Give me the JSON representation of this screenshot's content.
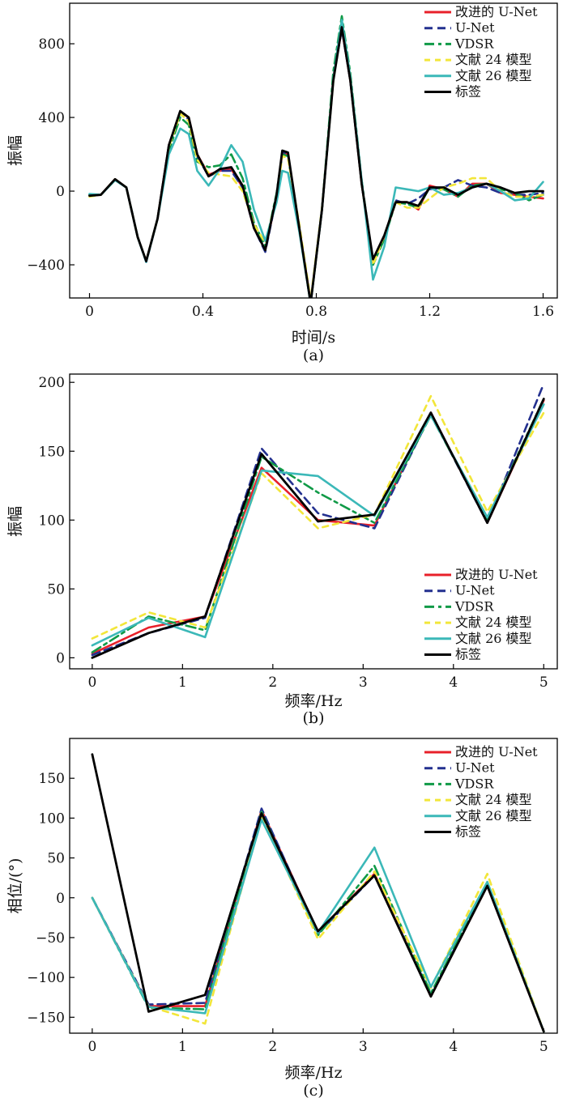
{
  "chart_data": [
    {
      "id": "a",
      "type": "line",
      "panel_label": "(a)",
      "xlabel": "时间/s",
      "ylabel": "振幅",
      "xlim": [
        -0.07,
        1.65
      ],
      "ylim": [
        -580,
        1020
      ],
      "xticks": [
        0,
        0.4,
        0.8,
        1.2,
        1.6
      ],
      "xtick_labels": [
        "0",
        "0.4",
        "0.8",
        "1.2",
        "1.6"
      ],
      "yticks": [
        -400,
        0,
        400,
        800
      ],
      "ytick_labels": [
        "−400",
        "0",
        "400",
        "800"
      ],
      "legend_position": "top-right",
      "series": [
        {
          "name": "改进的 U-Net",
          "color": "#e8202a",
          "dash": "solid",
          "x": [
            0,
            0.04,
            0.09,
            0.13,
            0.17,
            0.2,
            0.24,
            0.28,
            0.32,
            0.35,
            0.38,
            0.42,
            0.46,
            0.5,
            0.54,
            0.58,
            0.62,
            0.66,
            0.68,
            0.7,
            0.74,
            0.78,
            0.82,
            0.86,
            0.89,
            0.92,
            0.96,
            1.0,
            1.04,
            1.08,
            1.12,
            1.16,
            1.2,
            1.25,
            1.3,
            1.35,
            1.4,
            1.45,
            1.5,
            1.55,
            1.6
          ],
          "y": [
            -25,
            -20,
            65,
            20,
            -250,
            -380,
            -150,
            250,
            430,
            400,
            200,
            90,
            110,
            120,
            20,
            -200,
            -320,
            -30,
            210,
            200,
            -200,
            -600,
            -100,
            620,
            880,
            600,
            40,
            -390,
            -250,
            -60,
            -60,
            -100,
            30,
            10,
            -30,
            40,
            40,
            -10,
            -20,
            -30,
            -40
          ]
        },
        {
          "name": "U-Net",
          "color": "#23308f",
          "dash": "10,6",
          "x": [
            0,
            0.04,
            0.09,
            0.13,
            0.17,
            0.2,
            0.24,
            0.28,
            0.32,
            0.35,
            0.38,
            0.42,
            0.46,
            0.5,
            0.54,
            0.58,
            0.62,
            0.66,
            0.68,
            0.7,
            0.74,
            0.78,
            0.82,
            0.86,
            0.89,
            0.92,
            0.96,
            1.0,
            1.04,
            1.08,
            1.12,
            1.16,
            1.2,
            1.25,
            1.3,
            1.35,
            1.4,
            1.45,
            1.5,
            1.55,
            1.6
          ],
          "y": [
            -20,
            -20,
            60,
            20,
            -250,
            -385,
            -150,
            250,
            425,
            390,
            190,
            80,
            110,
            110,
            20,
            -200,
            -330,
            -30,
            215,
            200,
            -210,
            -610,
            -100,
            610,
            880,
            600,
            40,
            -380,
            -250,
            -50,
            -70,
            -40,
            10,
            20,
            60,
            30,
            20,
            -10,
            -20,
            -20,
            -10
          ]
        },
        {
          "name": "VDSR",
          "color": "#109a47",
          "dash": "12,5,4,5",
          "x": [
            0,
            0.04,
            0.09,
            0.13,
            0.17,
            0.2,
            0.24,
            0.28,
            0.32,
            0.35,
            0.38,
            0.42,
            0.46,
            0.5,
            0.54,
            0.58,
            0.62,
            0.66,
            0.68,
            0.7,
            0.74,
            0.78,
            0.82,
            0.86,
            0.89,
            0.92,
            0.96,
            1.0,
            1.04,
            1.08,
            1.12,
            1.16,
            1.2,
            1.25,
            1.3,
            1.35,
            1.4,
            1.45,
            1.5,
            1.55,
            1.6
          ],
          "y": [
            -20,
            -20,
            60,
            20,
            -250,
            -380,
            -150,
            220,
            400,
            360,
            160,
            130,
            140,
            200,
            70,
            -170,
            -300,
            -10,
            200,
            190,
            -200,
            -610,
            -100,
            650,
            950,
            640,
            60,
            -400,
            -260,
            -60,
            -70,
            -90,
            20,
            10,
            -30,
            30,
            40,
            10,
            -10,
            -50,
            -20
          ]
        },
        {
          "name": "文献 24 模型",
          "color": "#f2e63a",
          "dash": "7,6",
          "x": [
            0,
            0.04,
            0.09,
            0.13,
            0.17,
            0.2,
            0.24,
            0.28,
            0.32,
            0.35,
            0.38,
            0.42,
            0.46,
            0.5,
            0.54,
            0.58,
            0.62,
            0.66,
            0.68,
            0.7,
            0.74,
            0.78,
            0.82,
            0.86,
            0.89,
            0.92,
            0.96,
            1.0,
            1.04,
            1.08,
            1.12,
            1.16,
            1.2,
            1.25,
            1.3,
            1.35,
            1.4,
            1.45,
            1.5,
            1.55,
            1.6
          ],
          "y": [
            -30,
            -20,
            65,
            20,
            -250,
            -380,
            -150,
            240,
            420,
            380,
            170,
            100,
            90,
            80,
            0,
            -180,
            -280,
            -40,
            190,
            180,
            -180,
            -590,
            -90,
            600,
            900,
            620,
            40,
            -400,
            -240,
            -60,
            -90,
            -90,
            -40,
            20,
            40,
            70,
            70,
            0,
            -30,
            -30,
            -20
          ]
        },
        {
          "name": "文献 26 模型",
          "color": "#3bb8b8",
          "dash": "solid",
          "x": [
            0,
            0.04,
            0.09,
            0.13,
            0.17,
            0.2,
            0.24,
            0.28,
            0.32,
            0.35,
            0.38,
            0.42,
            0.46,
            0.5,
            0.54,
            0.58,
            0.62,
            0.66,
            0.68,
            0.7,
            0.74,
            0.78,
            0.82,
            0.86,
            0.89,
            0.92,
            0.96,
            1.0,
            1.04,
            1.08,
            1.12,
            1.16,
            1.2,
            1.25,
            1.3,
            1.35,
            1.4,
            1.45,
            1.5,
            1.55,
            1.6
          ],
          "y": [
            -15,
            -20,
            60,
            20,
            -250,
            -385,
            -150,
            200,
            340,
            310,
            110,
            30,
            120,
            250,
            160,
            -100,
            -270,
            -60,
            110,
            100,
            -220,
            -610,
            -100,
            610,
            930,
            620,
            60,
            -480,
            -300,
            20,
            10,
            0,
            20,
            -20,
            -10,
            20,
            40,
            0,
            -50,
            -40,
            50
          ]
        },
        {
          "name": "标签",
          "color": "#000000",
          "dash": "solid",
          "x": [
            0,
            0.04,
            0.09,
            0.13,
            0.17,
            0.2,
            0.24,
            0.28,
            0.32,
            0.35,
            0.38,
            0.42,
            0.46,
            0.5,
            0.54,
            0.58,
            0.62,
            0.66,
            0.68,
            0.7,
            0.74,
            0.78,
            0.82,
            0.86,
            0.89,
            0.92,
            0.96,
            1.0,
            1.04,
            1.08,
            1.12,
            1.16,
            1.2,
            1.25,
            1.3,
            1.35,
            1.4,
            1.45,
            1.5,
            1.55,
            1.6
          ],
          "y": [
            -25,
            -20,
            65,
            20,
            -250,
            -380,
            -150,
            250,
            435,
            400,
            200,
            80,
            120,
            130,
            30,
            -200,
            -320,
            -20,
            220,
            210,
            -200,
            -610,
            -100,
            600,
            890,
            600,
            40,
            -370,
            -240,
            -60,
            -60,
            -80,
            20,
            20,
            -20,
            20,
            40,
            20,
            -10,
            0,
            0
          ]
        }
      ]
    },
    {
      "id": "b",
      "type": "line",
      "panel_label": "(b)",
      "xlabel": "频率/Hz",
      "ylabel": "振幅",
      "xlim": [
        -0.25,
        5.15
      ],
      "ylim": [
        -8,
        206
      ],
      "xticks": [
        0,
        1,
        2,
        3,
        4,
        5
      ],
      "xtick_labels": [
        "0",
        "1",
        "2",
        "3",
        "4",
        "5"
      ],
      "yticks": [
        0,
        50,
        100,
        150,
        200
      ],
      "ytick_labels": [
        "0",
        "50",
        "100",
        "150",
        "200"
      ],
      "legend_position": "bottom-right",
      "series": [
        {
          "name": "改进的 U-Net",
          "color": "#e8202a",
          "dash": "solid",
          "x": [
            0,
            0.625,
            1.25,
            1.875,
            2.5,
            3.125,
            3.75,
            4.375,
            5
          ],
          "y": [
            3,
            22,
            30,
            138,
            100,
            96,
            178,
            98,
            187
          ]
        },
        {
          "name": "U-Net",
          "color": "#23308f",
          "dash": "10,6",
          "x": [
            0,
            0.625,
            1.25,
            1.875,
            2.5,
            3.125,
            3.75,
            4.375,
            5
          ],
          "y": [
            2,
            18,
            29,
            152,
            105,
            94,
            177,
            98,
            199
          ]
        },
        {
          "name": "VDSR",
          "color": "#109a47",
          "dash": "12,5,4,5",
          "x": [
            0,
            0.625,
            1.25,
            1.875,
            2.5,
            3.125,
            3.75,
            4.375,
            5
          ],
          "y": [
            4,
            30,
            20,
            146,
            120,
            98,
            176,
            100,
            188
          ]
        },
        {
          "name": "文献 24 模型",
          "color": "#f2e63a",
          "dash": "7,6",
          "x": [
            0,
            0.625,
            1.25,
            1.875,
            2.5,
            3.125,
            3.75,
            4.375,
            5
          ],
          "y": [
            14,
            33,
            22,
            134,
            94,
            104,
            190,
            106,
            178
          ]
        },
        {
          "name": "文献 26 模型",
          "color": "#3bb8b8",
          "dash": "solid",
          "x": [
            0,
            0.625,
            1.25,
            1.875,
            2.5,
            3.125,
            3.75,
            4.375,
            5
          ],
          "y": [
            9,
            29,
            15,
            136,
            132,
            103,
            176,
            102,
            184
          ]
        },
        {
          "name": "标签",
          "color": "#000000",
          "dash": "solid",
          "x": [
            0,
            0.625,
            1.25,
            1.875,
            2.5,
            3.125,
            3.75,
            4.375,
            5
          ],
          "y": [
            0,
            18,
            30,
            148,
            99,
            104,
            178,
            98,
            188
          ]
        }
      ]
    },
    {
      "id": "c",
      "type": "line",
      "panel_label": "(c)",
      "xlabel": "频率/Hz",
      "ylabel": "相位/(°)",
      "xlim": [
        -0.25,
        5.15
      ],
      "ylim": [
        -170,
        200
      ],
      "xticks": [
        0,
        1,
        2,
        3,
        4,
        5
      ],
      "xtick_labels": [
        "0",
        "1",
        "2",
        "3",
        "4",
        "5"
      ],
      "yticks": [
        -150,
        -100,
        -50,
        0,
        50,
        100,
        150
      ],
      "ytick_labels": [
        "−150",
        "−100",
        "−50",
        "0",
        "50",
        "100",
        "150"
      ],
      "legend_position": "top-right",
      "series": [
        {
          "name": "改进的 U-Net",
          "color": "#e8202a",
          "dash": "solid",
          "x": [
            0,
            0.625,
            1.25,
            1.875,
            2.5,
            3.125,
            3.75,
            4.375,
            5
          ],
          "y": [
            0,
            -136,
            -136,
            110,
            -43,
            30,
            -124,
            15,
            -168
          ]
        },
        {
          "name": "U-Net",
          "color": "#23308f",
          "dash": "10,6",
          "x": [
            0,
            0.625,
            1.25,
            1.875,
            2.5,
            3.125,
            3.75,
            4.375,
            5
          ],
          "y": [
            0,
            -134,
            -132,
            112,
            -45,
            28,
            -122,
            17,
            -168
          ]
        },
        {
          "name": "VDSR",
          "color": "#109a47",
          "dash": "12,5,4,5",
          "x": [
            0,
            0.625,
            1.25,
            1.875,
            2.5,
            3.125,
            3.75,
            4.375,
            5
          ],
          "y": [
            0,
            -138,
            -140,
            108,
            -47,
            40,
            -120,
            18,
            -168
          ]
        },
        {
          "name": "文献 24 模型",
          "color": "#f2e63a",
          "dash": "7,6",
          "x": [
            0,
            0.625,
            1.25,
            1.875,
            2.5,
            3.125,
            3.75,
            4.375,
            5
          ],
          "y": [
            0,
            -136,
            -158,
            104,
            -52,
            33,
            -113,
            30,
            -168
          ]
        },
        {
          "name": "文献 26 模型",
          "color": "#3bb8b8",
          "dash": "solid",
          "x": [
            0,
            0.625,
            1.25,
            1.875,
            2.5,
            3.125,
            3.75,
            4.375,
            5
          ],
          "y": [
            0,
            -137,
            -145,
            98,
            -44,
            63,
            -112,
            20,
            -168
          ]
        },
        {
          "name": "标签",
          "color": "#000000",
          "dash": "solid",
          "x": [
            0,
            0.625,
            1.25,
            1.875,
            2.5,
            3.125,
            3.75,
            4.375,
            5
          ],
          "y": [
            180,
            -143,
            -122,
            106,
            -42,
            28,
            -124,
            15,
            -168
          ]
        }
      ]
    }
  ]
}
